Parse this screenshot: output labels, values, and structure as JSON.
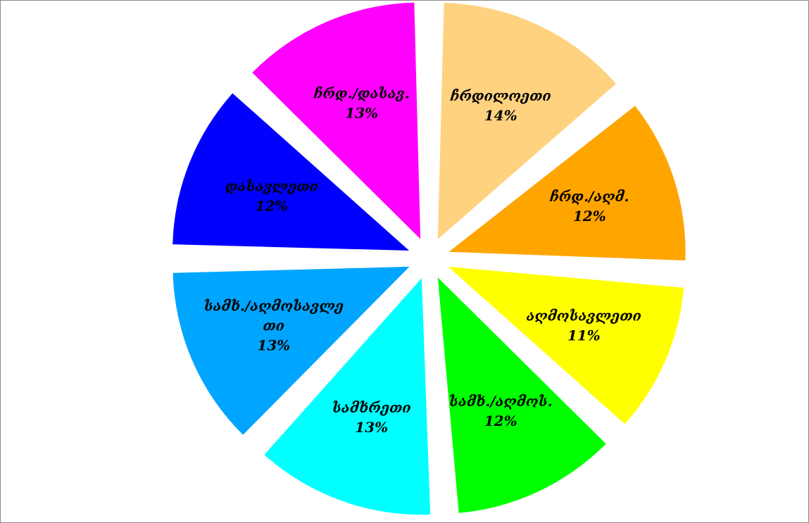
{
  "chart_data": {
    "type": "pie",
    "title": "",
    "exploded": true,
    "labels_inside": true,
    "legend": "none",
    "slices": [
      {
        "label": "ჩრდილოეთი",
        "label_lines": [
          "ჩრდილოეთი"
        ],
        "percent_label": "14%",
        "value": 14,
        "color": "#FFD280"
      },
      {
        "label": "ჩრდ./აღმ.",
        "label_lines": [
          "ჩრდ./აღმ."
        ],
        "percent_label": "12%",
        "value": 12,
        "color": "#FFA500"
      },
      {
        "label": "აღმოსავლეთი",
        "label_lines": [
          "აღმოსავლეთი"
        ],
        "percent_label": "11%",
        "value": 11,
        "color": "#FFFF00"
      },
      {
        "label": "სამხ./აღმოს.",
        "label_lines": [
          "სამხ./აღმოს."
        ],
        "percent_label": "12%",
        "value": 12,
        "color": "#00FF00"
      },
      {
        "label": "სამხრეთი",
        "label_lines": [
          "სამხრეთი"
        ],
        "percent_label": "13%",
        "value": 13,
        "color": "#00FFFF"
      },
      {
        "label": "სამხ./აღმოსავლეთი",
        "label_lines": [
          "სამხ./აღმოსავლე",
          "თი"
        ],
        "percent_label": "13%",
        "value": 13,
        "color": "#00A5FF"
      },
      {
        "label": "დასავლეთი",
        "label_lines": [
          "დასავლეთი"
        ],
        "percent_label": "12%",
        "value": 12,
        "color": "#0000FF"
      },
      {
        "label": "ჩრდ./დასავ.",
        "label_lines": [
          "ჩრდ./დასავ."
        ],
        "percent_label": "13%",
        "value": 13,
        "color": "#FF00FF"
      }
    ]
  }
}
